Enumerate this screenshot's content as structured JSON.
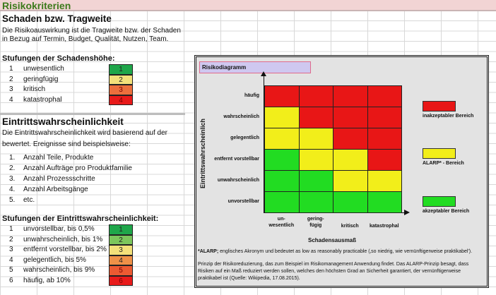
{
  "title": "Risikokriterien",
  "schaden": {
    "heading": "Schaden bzw. Tragweite",
    "desc1": "Die Risikoauswirkung ist die Tragweite bzw. der Schaden",
    "desc2": "in Bezug auf Termin, Budget, Qualität, Nutzen, Team.",
    "levels_title": "Stufungen der Schadenshöhe:",
    "levels": [
      {
        "n": "1",
        "label": "unwesentlich",
        "value": "1",
        "color": "#1fa64a"
      },
      {
        "n": "2",
        "label": "geringfügig",
        "value": "2",
        "color": "#f3e07a"
      },
      {
        "n": "3",
        "label": "kritisch",
        "value": "3",
        "color": "#ec6f3d"
      },
      {
        "n": "4",
        "label": "katastrophal",
        "value": "4",
        "color": "#e81a1a"
      }
    ]
  },
  "eintritt": {
    "heading": "Eintrittswahrscheinlichkeit",
    "desc1": "Die Eintrittswahrscheinlichkeit  wird basierend auf der",
    "desc2": "bewertet. Ereignisse sind beispielsweise:",
    "examples": [
      {
        "n": "1.",
        "label": "Anzahl Teile, Produkte"
      },
      {
        "n": "2.",
        "label": "Anzahl Aufträge pro Produktfamilie"
      },
      {
        "n": "3.",
        "label": "Anzahl Prozessschritte"
      },
      {
        "n": "4.",
        "label": "Anzahl Arbeitsgänge"
      },
      {
        "n": "5.",
        "label": "etc."
      }
    ],
    "levels_title": "Stufungen der Eintrittswahrscheinlichkeit:",
    "levels": [
      {
        "n": "1",
        "label": "unvorstellbar, bis 0,5%",
        "value": "1",
        "color": "#1fa64a"
      },
      {
        "n": "2",
        "label": "unwahrscheinlich, bis 1%",
        "value": "2",
        "color": "#7cc65c"
      },
      {
        "n": "3",
        "label": "entfernt vorstellbar, bis 2%",
        "value": "3",
        "color": "#f3e07a"
      },
      {
        "n": "4",
        "label": "gelegentlich, bis 5%",
        "value": "4",
        "color": "#ef9148"
      },
      {
        "n": "5",
        "label": "wahrscheinlich, bis 9%",
        "value": "5",
        "color": "#ec5a32"
      },
      {
        "n": "6",
        "label": "häufig, ab 10%",
        "value": "6",
        "color": "#e81a1a"
      }
    ]
  },
  "diagram": {
    "title": "Risikodiagramm",
    "ylabel": "Eintrittswahrscheinlich",
    "xlabel": "Schadensausmaß",
    "rows": [
      "häufig",
      "wahrscheinlich",
      "gelegentlich",
      "entfernt vorstellbar",
      "unwahrscheinlich",
      "unvorstellbar"
    ],
    "cols": [
      "un-\nwesentlich",
      "gering-\nfügig",
      "kritisch",
      "katastrophal"
    ],
    "matrix": [
      [
        "R",
        "R",
        "R",
        "R"
      ],
      [
        "Y",
        "R",
        "R",
        "R"
      ],
      [
        "Y",
        "Y",
        "R",
        "R"
      ],
      [
        "G",
        "Y",
        "Y",
        "R"
      ],
      [
        "G",
        "G",
        "Y",
        "Y"
      ],
      [
        "G",
        "G",
        "G",
        "G"
      ]
    ],
    "colors": {
      "R": "#e81616",
      "Y": "#f2ee1a",
      "G": "#22dc22"
    },
    "legend": [
      {
        "key": "R",
        "label": "inakzeptabler Bereich"
      },
      {
        "key": "Y",
        "label": "ALARP* - Bereich"
      },
      {
        "key": "G",
        "label": "akzeptabler Bereich"
      }
    ],
    "note_bold": "*ALARP;",
    "note": " englisches Akronym und bedeutet as low as reasonably practicable (‚so niedrig, wie vernünftigerweise praktikabel').",
    "principle": "Prinzip der Risikoreduzierung, das zum Beispiel im Risikomanagement Anwendung findet. Das ALARP-Prinzip besagt, dass Risiken auf ein Maß reduziert werden sollen, welches den höchsten Grad an Sicherheit garantiert, der vernünftigerweise praktikabel ist (Quelle: Wikipedia, 17.08.2015)."
  }
}
